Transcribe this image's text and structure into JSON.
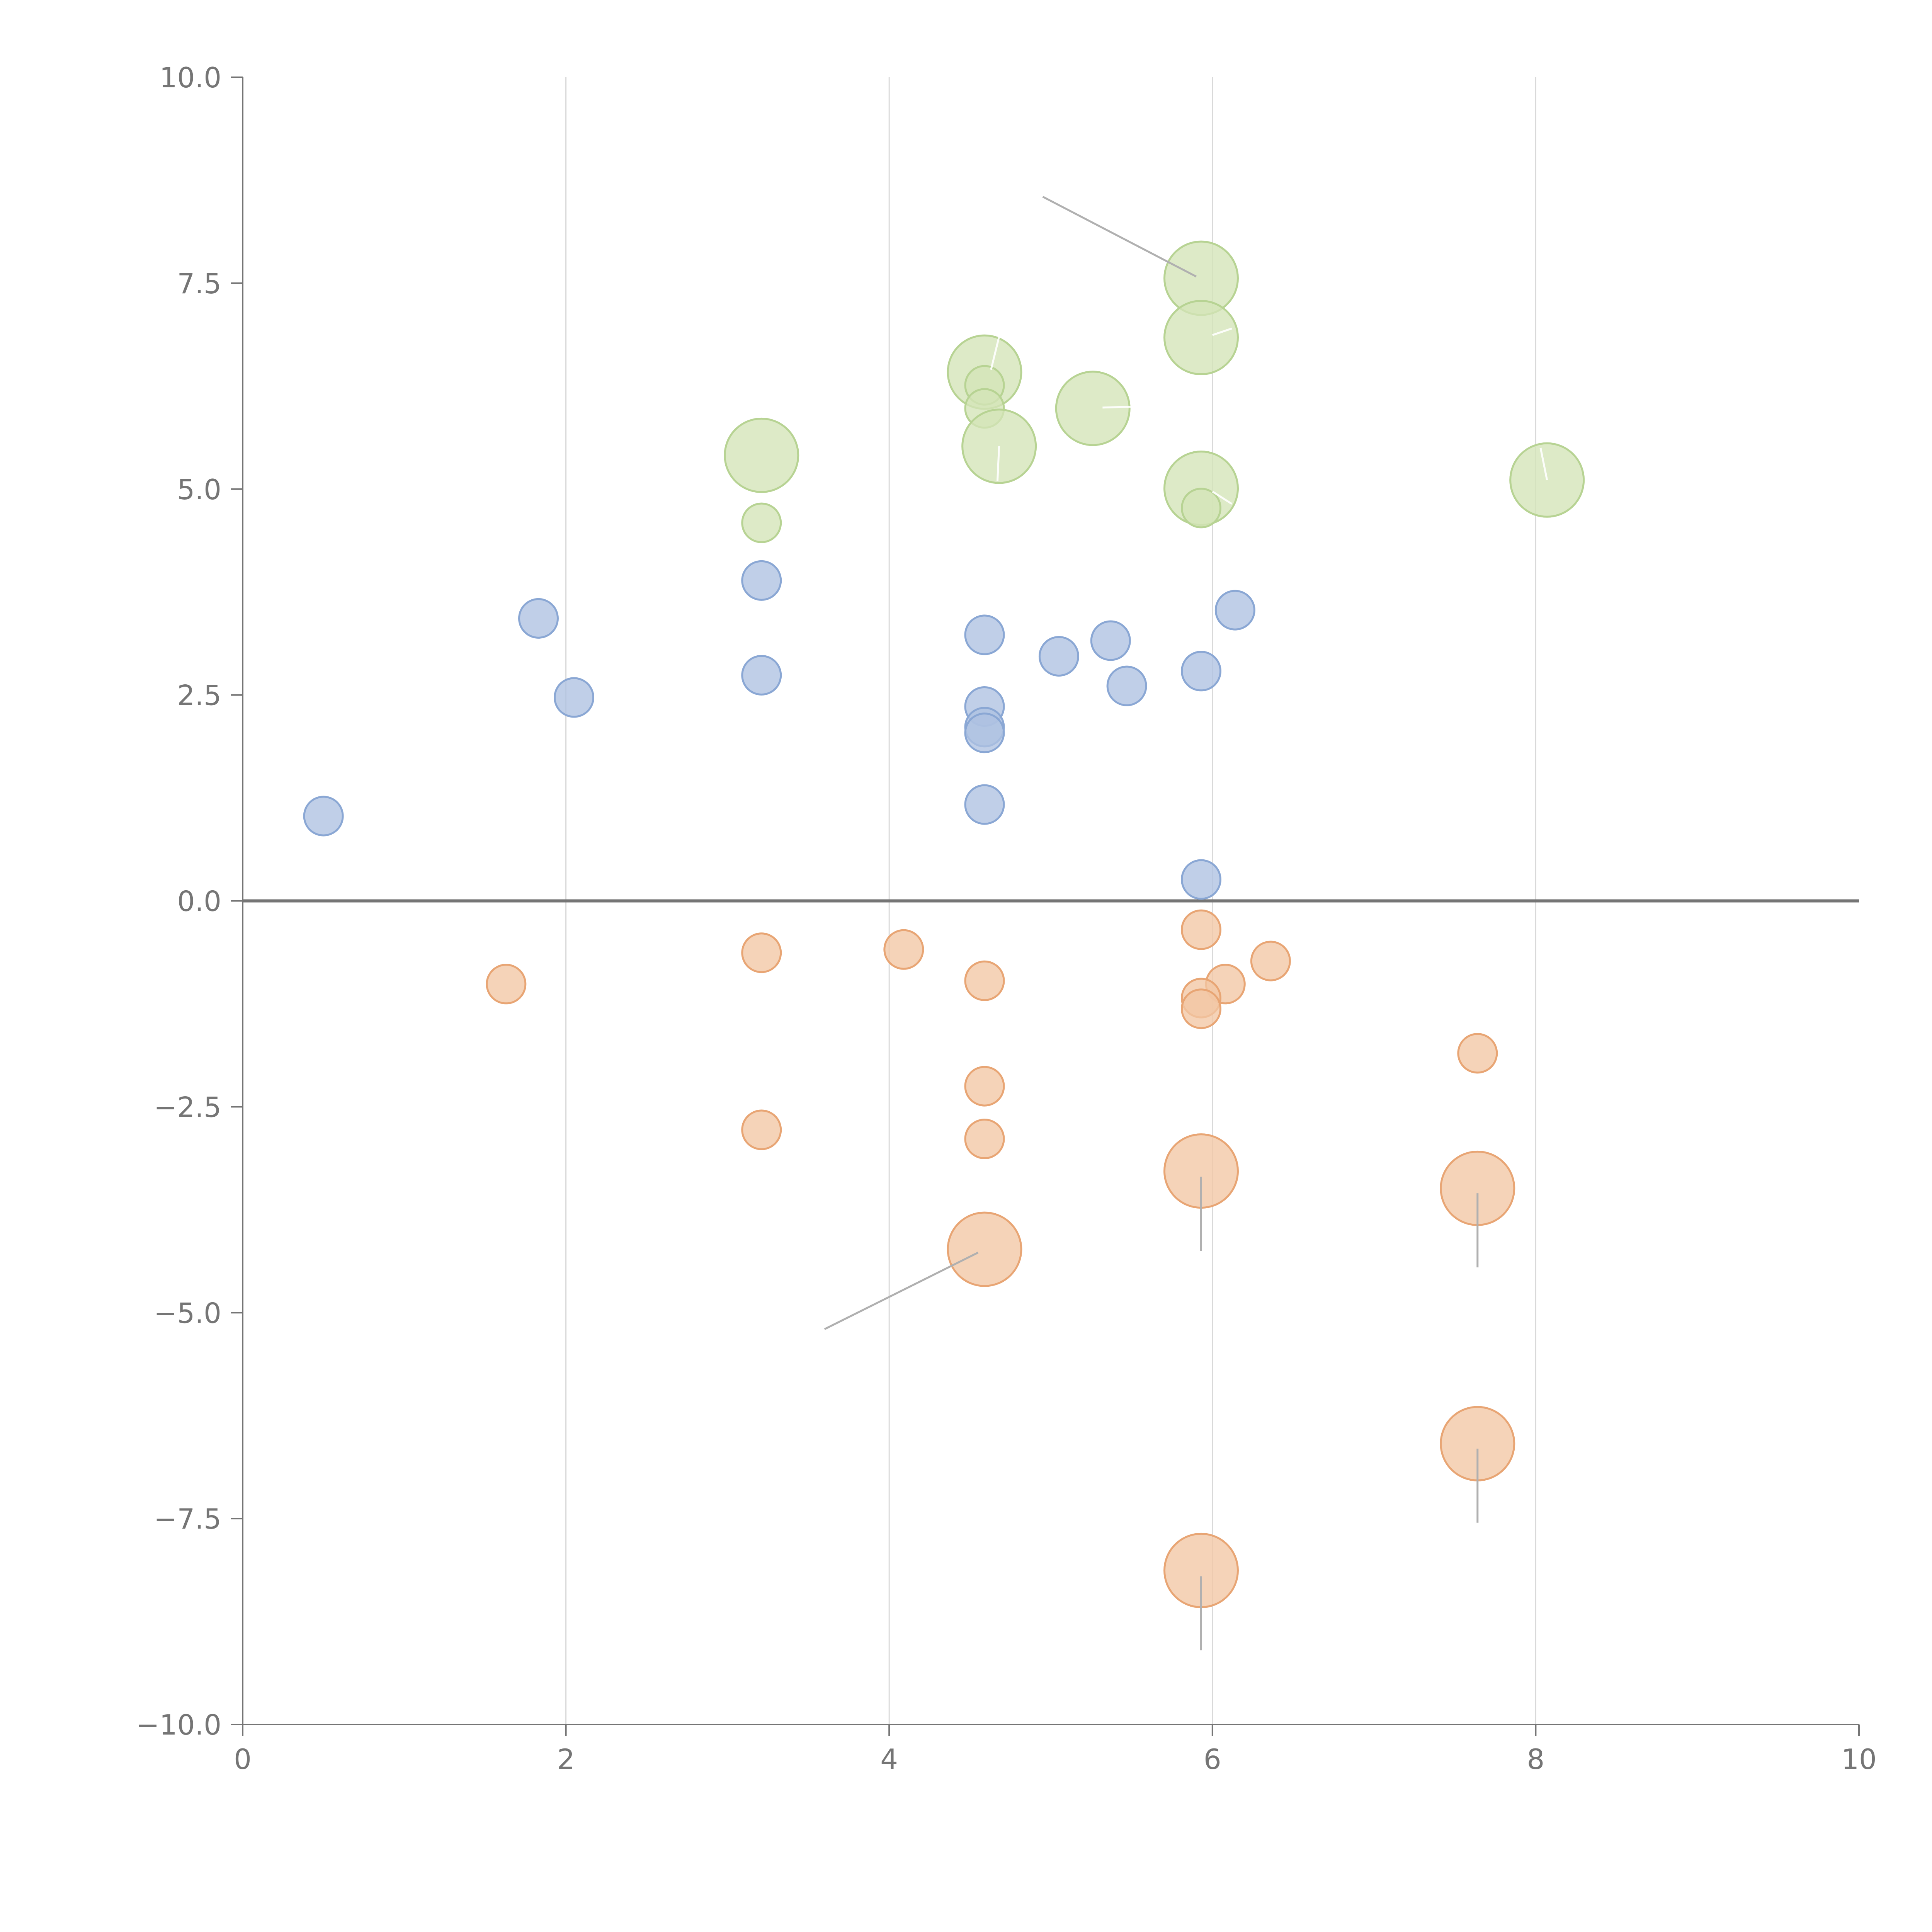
{
  "chart_data": {
    "type": "scatter",
    "title": "",
    "xlabel": "",
    "ylabel": "",
    "xlim": [
      0,
      10
    ],
    "ylim": [
      -10,
      10
    ],
    "x_ticks": [
      0,
      2,
      4,
      6,
      8,
      10
    ],
    "x_tick_labels": [
      "0",
      "2",
      "4",
      "6",
      "8",
      "10"
    ],
    "y_ticks": [
      10,
      7.5,
      5,
      2.5,
      0,
      -2.5,
      -5,
      -7.5,
      -10
    ],
    "y_tick_labels": [
      "10.0",
      "7.5",
      "5.0",
      "2.5",
      "0.0",
      "−2.5",
      "−5.0",
      "−7.5",
      "−10.0"
    ],
    "grid": "vertical",
    "zero_line": true,
    "colors": {
      "blue_fill": "#aec2e2",
      "blue_stroke": "#8aa7d4",
      "orange_fill": "#f2c6a4",
      "orange_stroke": "#e8a574",
      "green_fill": "#d3e4b7",
      "green_stroke": "#b7d393"
    },
    "series": [
      {
        "name": "blue",
        "color": "blue",
        "size": "small",
        "points": [
          {
            "x": 0.5,
            "y": 1.03
          },
          {
            "x": 1.83,
            "y": 3.43
          },
          {
            "x": 2.05,
            "y": 2.47
          },
          {
            "x": 3.21,
            "y": 3.89
          },
          {
            "x": 3.21,
            "y": 2.74
          },
          {
            "x": 4.59,
            "y": 3.23
          },
          {
            "x": 4.59,
            "y": 2.36
          },
          {
            "x": 4.59,
            "y": 2.11
          },
          {
            "x": 4.59,
            "y": 2.04
          },
          {
            "x": 4.59,
            "y": 1.17
          },
          {
            "x": 5.05,
            "y": 2.97
          },
          {
            "x": 5.37,
            "y": 3.16
          },
          {
            "x": 5.47,
            "y": 2.61
          },
          {
            "x": 5.93,
            "y": 2.79
          },
          {
            "x": 6.14,
            "y": 3.53
          },
          {
            "x": 5.93,
            "y": 0.26
          }
        ]
      },
      {
        "name": "orange",
        "color": "orange",
        "points": [
          {
            "x": 1.63,
            "y": -1.01,
            "size": "small"
          },
          {
            "x": 3.21,
            "y": -0.63,
            "size": "small"
          },
          {
            "x": 4.09,
            "y": -0.59,
            "size": "small"
          },
          {
            "x": 4.59,
            "y": -0.97,
            "size": "small"
          },
          {
            "x": 5.93,
            "y": -0.35,
            "size": "small"
          },
          {
            "x": 6.36,
            "y": -0.73,
            "size": "small"
          },
          {
            "x": 6.08,
            "y": -1.01,
            "size": "small"
          },
          {
            "x": 5.93,
            "y": -1.18,
            "size": "small"
          },
          {
            "x": 5.93,
            "y": -1.31,
            "size": "small"
          },
          {
            "x": 7.64,
            "y": -1.85,
            "size": "small"
          },
          {
            "x": 4.59,
            "y": -2.25,
            "size": "small"
          },
          {
            "x": 3.21,
            "y": -2.78,
            "size": "small"
          },
          {
            "x": 4.59,
            "y": -2.89,
            "size": "small"
          },
          {
            "x": 5.93,
            "y": -3.28,
            "size": "large"
          },
          {
            "x": 7.64,
            "y": -3.49,
            "size": "large"
          },
          {
            "x": 4.59,
            "y": -4.23,
            "size": "large"
          },
          {
            "x": 7.64,
            "y": -6.59,
            "size": "large"
          },
          {
            "x": 5.93,
            "y": -8.13,
            "size": "large"
          }
        ]
      },
      {
        "name": "green",
        "color": "green",
        "points": [
          {
            "x": 5.93,
            "y": 7.56,
            "size": "large"
          },
          {
            "x": 5.93,
            "y": 6.84,
            "size": "large"
          },
          {
            "x": 4.59,
            "y": 6.42,
            "size": "large"
          },
          {
            "x": 4.59,
            "y": 6.26,
            "size": "small"
          },
          {
            "x": 4.59,
            "y": 5.98,
            "size": "small"
          },
          {
            "x": 5.26,
            "y": 5.98,
            "size": "large"
          },
          {
            "x": 4.68,
            "y": 5.52,
            "size": "large"
          },
          {
            "x": 3.21,
            "y": 5.41,
            "size": "large"
          },
          {
            "x": 5.93,
            "y": 5.01,
            "size": "large"
          },
          {
            "x": 5.93,
            "y": 4.77,
            "size": "small"
          },
          {
            "x": 8.07,
            "y": 5.11,
            "size": "large"
          },
          {
            "x": 3.21,
            "y": 4.59,
            "size": "small"
          }
        ]
      }
    ],
    "annotation_leaders": [
      {
        "from": [
          4.95,
          8.55
        ],
        "to": [
          5.9,
          7.58
        ],
        "style": "gray"
      },
      {
        "from": [
          3.6,
          -5.2
        ],
        "to": [
          4.55,
          -4.27
        ],
        "style": "gray"
      },
      {
        "from": [
          5.93,
          -3.35
        ],
        "to": [
          5.93,
          -4.25
        ],
        "style": "gray"
      },
      {
        "from": [
          7.64,
          -3.55
        ],
        "to": [
          7.64,
          -4.45
        ],
        "style": "gray"
      },
      {
        "from": [
          7.64,
          -6.65
        ],
        "to": [
          7.64,
          -7.55
        ],
        "style": "gray"
      },
      {
        "from": [
          5.93,
          -8.2
        ],
        "to": [
          5.93,
          -9.1
        ],
        "style": "gray"
      },
      {
        "from": [
          4.63,
          6.45
        ],
        "to": [
          4.68,
          6.85
        ],
        "style": "light"
      },
      {
        "from": [
          6.0,
          6.87
        ],
        "to": [
          6.12,
          6.95
        ],
        "style": "light"
      },
      {
        "from": [
          5.32,
          5.99
        ],
        "to": [
          5.5,
          6.0
        ],
        "style": "light"
      },
      {
        "from": [
          4.68,
          5.52
        ],
        "to": [
          4.67,
          5.1
        ],
        "style": "light"
      },
      {
        "from": [
          6.0,
          4.97
        ],
        "to": [
          6.12,
          4.82
        ],
        "style": "light"
      },
      {
        "from": [
          8.07,
          5.11
        ],
        "to": [
          8.03,
          5.5
        ],
        "style": "light"
      }
    ]
  }
}
